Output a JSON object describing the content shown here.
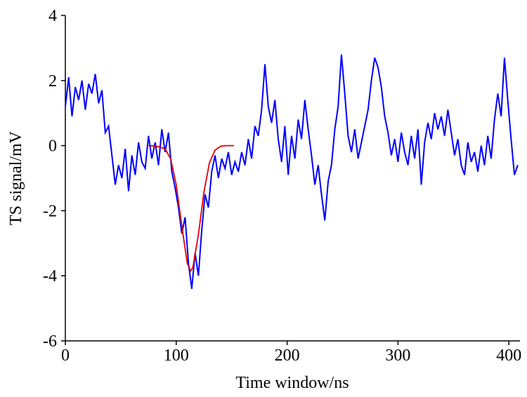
{
  "chart_data": {
    "type": "line",
    "xlabel": "Time window/ns",
    "ylabel": "TS signal/mV",
    "xlim": [
      0,
      410
    ],
    "ylim": [
      -6,
      4
    ],
    "xticks": [
      0,
      100,
      200,
      300,
      400
    ],
    "yticks": [
      -6,
      -4,
      -2,
      0,
      2,
      4
    ],
    "series": [
      {
        "color": "#0000ff",
        "x": [
          0,
          3,
          6,
          9,
          12,
          15,
          18,
          21,
          24,
          27,
          30,
          33,
          36,
          39,
          42,
          45,
          48,
          51,
          54,
          57,
          60,
          63,
          66,
          69,
          72,
          75,
          78,
          81,
          84,
          87,
          90,
          93,
          96,
          99,
          102,
          105,
          108,
          111,
          114,
          117,
          120,
          123,
          126,
          129,
          132,
          135,
          138,
          141,
          144,
          147,
          150,
          153,
          156,
          159,
          162,
          165,
          168,
          171,
          174,
          177,
          180,
          183,
          186,
          189,
          192,
          195,
          198,
          201,
          204,
          207,
          210,
          213,
          216,
          219,
          222,
          225,
          228,
          231,
          234,
          237,
          240,
          243,
          246,
          249,
          252,
          255,
          258,
          261,
          264,
          267,
          270,
          273,
          276,
          279,
          282,
          285,
          288,
          291,
          294,
          297,
          300,
          303,
          306,
          309,
          312,
          315,
          318,
          321,
          324,
          327,
          330,
          333,
          336,
          339,
          342,
          345,
          348,
          351,
          354,
          357,
          360,
          363,
          366,
          369,
          372,
          375,
          378,
          381,
          384,
          387,
          390,
          393,
          396,
          399,
          402,
          405,
          408
        ],
        "values": [
          1.2,
          2.1,
          0.9,
          1.8,
          1.4,
          2.0,
          1.1,
          1.9,
          1.6,
          2.2,
          1.3,
          1.7,
          0.4,
          0.6,
          -0.3,
          -1.2,
          -0.6,
          -1.0,
          -0.1,
          -1.4,
          -0.3,
          -0.9,
          0.1,
          -0.5,
          -0.7,
          0.3,
          -0.4,
          0.1,
          -0.6,
          0.5,
          -0.2,
          0.4,
          -0.8,
          -1.3,
          -1.9,
          -2.7,
          -2.2,
          -3.6,
          -4.4,
          -3.3,
          -4.0,
          -2.6,
          -1.5,
          -1.9,
          -0.8,
          -0.3,
          -1.0,
          -0.4,
          -0.7,
          -0.2,
          -0.9,
          -0.5,
          -0.8,
          -0.2,
          -0.6,
          0.2,
          -0.4,
          0.6,
          0.3,
          1.1,
          2.5,
          1.2,
          0.7,
          1.4,
          0.2,
          -0.5,
          0.6,
          -0.9,
          0.3,
          -0.4,
          0.8,
          0.2,
          1.4,
          0.5,
          -0.3,
          -1.2,
          -0.6,
          -1.5,
          -2.3,
          -1.1,
          -0.6,
          0.5,
          1.2,
          2.8,
          1.6,
          0.3,
          -0.2,
          0.5,
          -0.4,
          0.1,
          0.6,
          1.1,
          2.0,
          2.7,
          2.4,
          1.8,
          0.9,
          0.4,
          -0.3,
          0.2,
          -0.5,
          0.4,
          -0.2,
          -0.6,
          0.3,
          -0.4,
          0.5,
          -1.2,
          0.1,
          0.7,
          0.2,
          1.0,
          0.5,
          0.9,
          0.3,
          1.1,
          0.4,
          -0.3,
          0.2,
          -0.6,
          -0.9,
          0.1,
          -0.5,
          -0.2,
          -0.8,
          0.0,
          -0.6,
          0.3,
          -0.4,
          0.8,
          1.6,
          0.9,
          2.7,
          1.4,
          0.2,
          -0.9,
          -0.6
        ]
      },
      {
        "color": "#e00000",
        "x": [
          75,
          80,
          85,
          90,
          95,
          100,
          105,
          110,
          113,
          115,
          120,
          125,
          130,
          135,
          140,
          145,
          150,
          152
        ],
        "values": [
          0,
          -0.01,
          -0.04,
          -0.1,
          -0.41,
          -1.2,
          -2.47,
          -3.62,
          -3.85,
          -3.74,
          -2.74,
          -1.42,
          -0.52,
          -0.14,
          -0.02,
          0,
          0,
          0
        ]
      }
    ]
  }
}
